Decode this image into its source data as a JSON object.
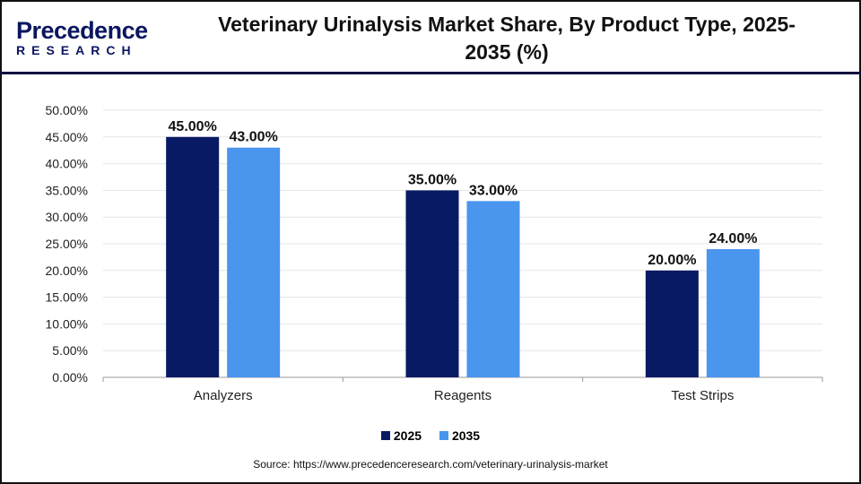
{
  "logo": {
    "line1": "Precedence",
    "line2": "RESEARCH"
  },
  "title": "Veterinary Urinalysis Market Share, By Product Type, 2025-2035 (%)",
  "source": "Source: https://www.precedenceresearch.com/veterinary-urinalysis-market",
  "chart_data": {
    "type": "bar",
    "title": "Veterinary Urinalysis Market Share, By Product Type, 2025-2035 (%)",
    "categories": [
      "Analyzers",
      "Reagents",
      "Test Strips"
    ],
    "series": [
      {
        "name": "2025",
        "values": [
          45,
          35,
          20
        ],
        "color": "#081a63",
        "labels": [
          "45.00%",
          "35.00%",
          "20.00%"
        ]
      },
      {
        "name": "2035",
        "values": [
          43,
          33,
          24
        ],
        "color": "#4a95ee",
        "labels": [
          "43.00%",
          "33.00%",
          "24.00%"
        ]
      }
    ],
    "ylim": [
      0,
      50
    ],
    "yticks": [
      "0.00%",
      "5.00%",
      "10.00%",
      "15.00%",
      "20.00%",
      "25.00%",
      "30.00%",
      "35.00%",
      "40.00%",
      "45.00%",
      "50.00%"
    ],
    "grid": true,
    "legend": "bottom"
  }
}
